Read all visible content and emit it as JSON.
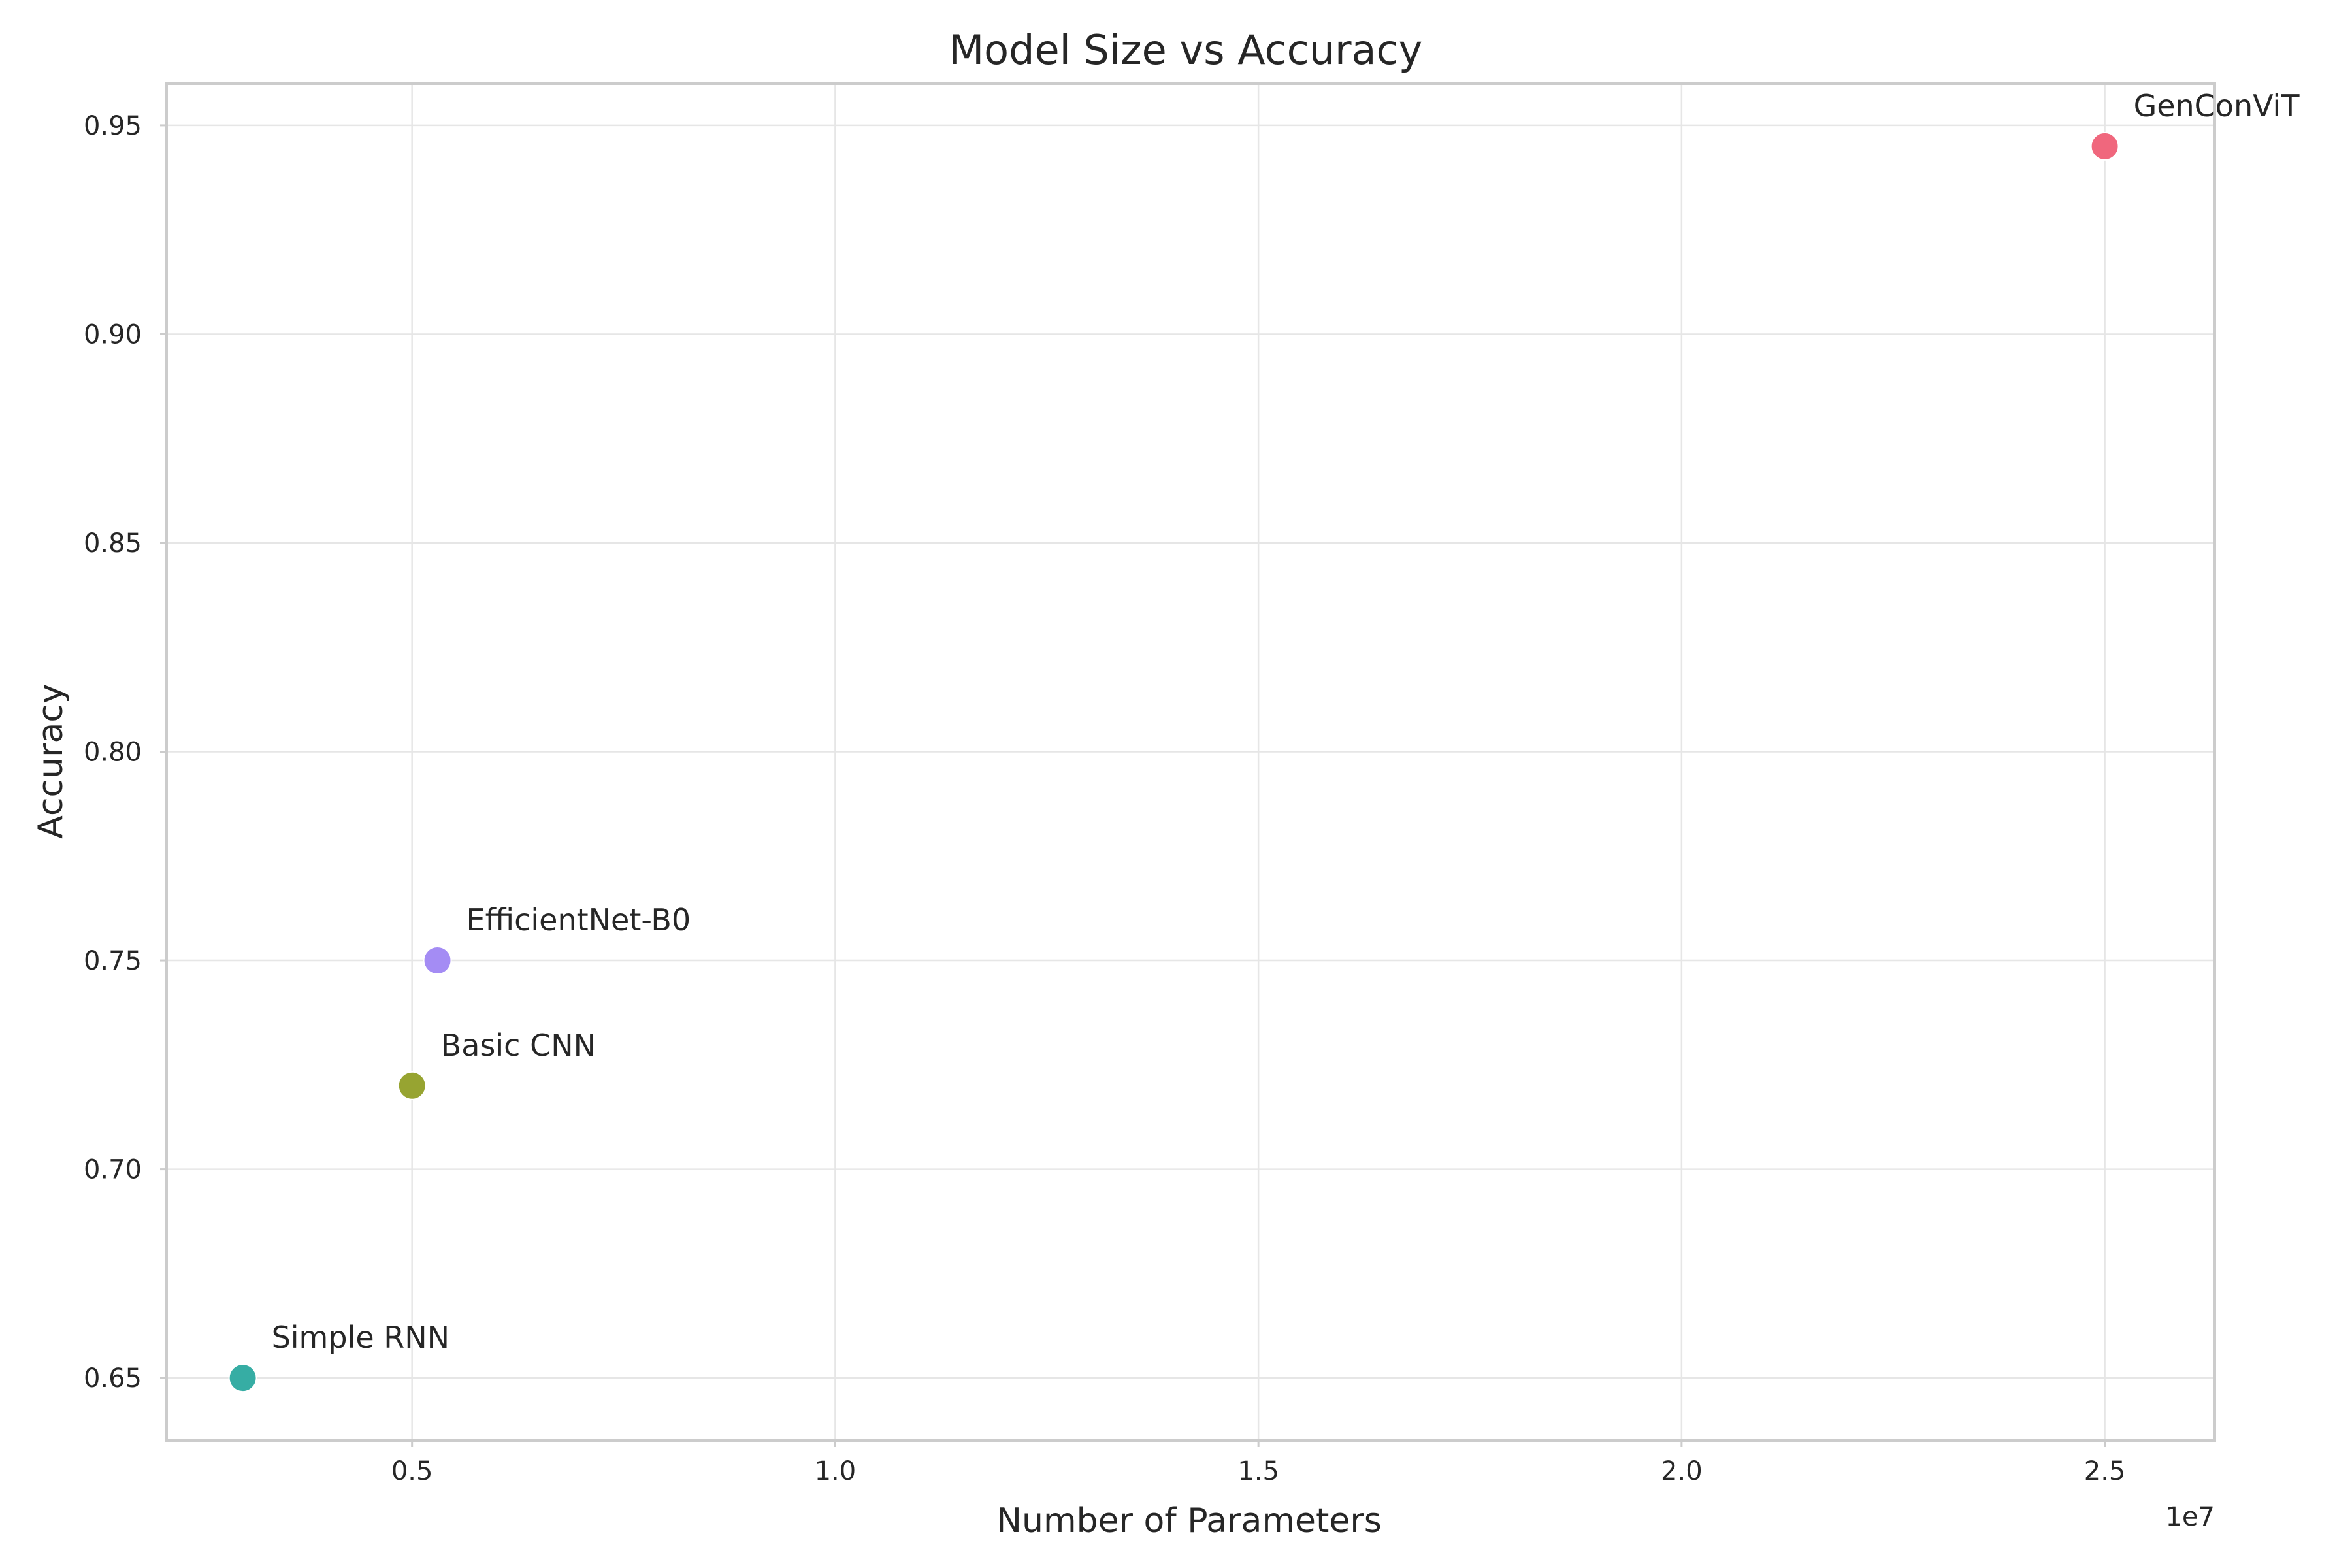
{
  "chart_data": {
    "type": "scatter",
    "title": "Model Size vs Accuracy",
    "xlabel": "Number of Parameters",
    "ylabel": "Accuracy",
    "x_offset_text": "1e7",
    "xlim": [
      2100000,
      26300000
    ],
    "ylim": [
      0.635,
      0.96
    ],
    "xticks": [
      5000000,
      10000000,
      15000000,
      20000000,
      25000000
    ],
    "xtick_labels": [
      "0.5",
      "1.0",
      "1.5",
      "2.0",
      "2.5"
    ],
    "yticks": [
      0.65,
      0.7,
      0.75,
      0.8,
      0.85,
      0.9,
      0.95
    ],
    "ytick_labels": [
      "0.65",
      "0.70",
      "0.75",
      "0.80",
      "0.85",
      "0.90",
      "0.95"
    ],
    "grid": true,
    "points": [
      {
        "label": "GenConViT",
        "x": 25000000,
        "y": 0.945,
        "color": "#f0677d"
      },
      {
        "label": "EfficientNet-B0",
        "x": 5300000,
        "y": 0.75,
        "color": "#a48cf4"
      },
      {
        "label": "Basic CNN",
        "x": 5000000,
        "y": 0.72,
        "color": "#97a431"
      },
      {
        "label": "Simple RNN",
        "x": 3000000,
        "y": 0.65,
        "color": "#36ada4"
      }
    ]
  }
}
